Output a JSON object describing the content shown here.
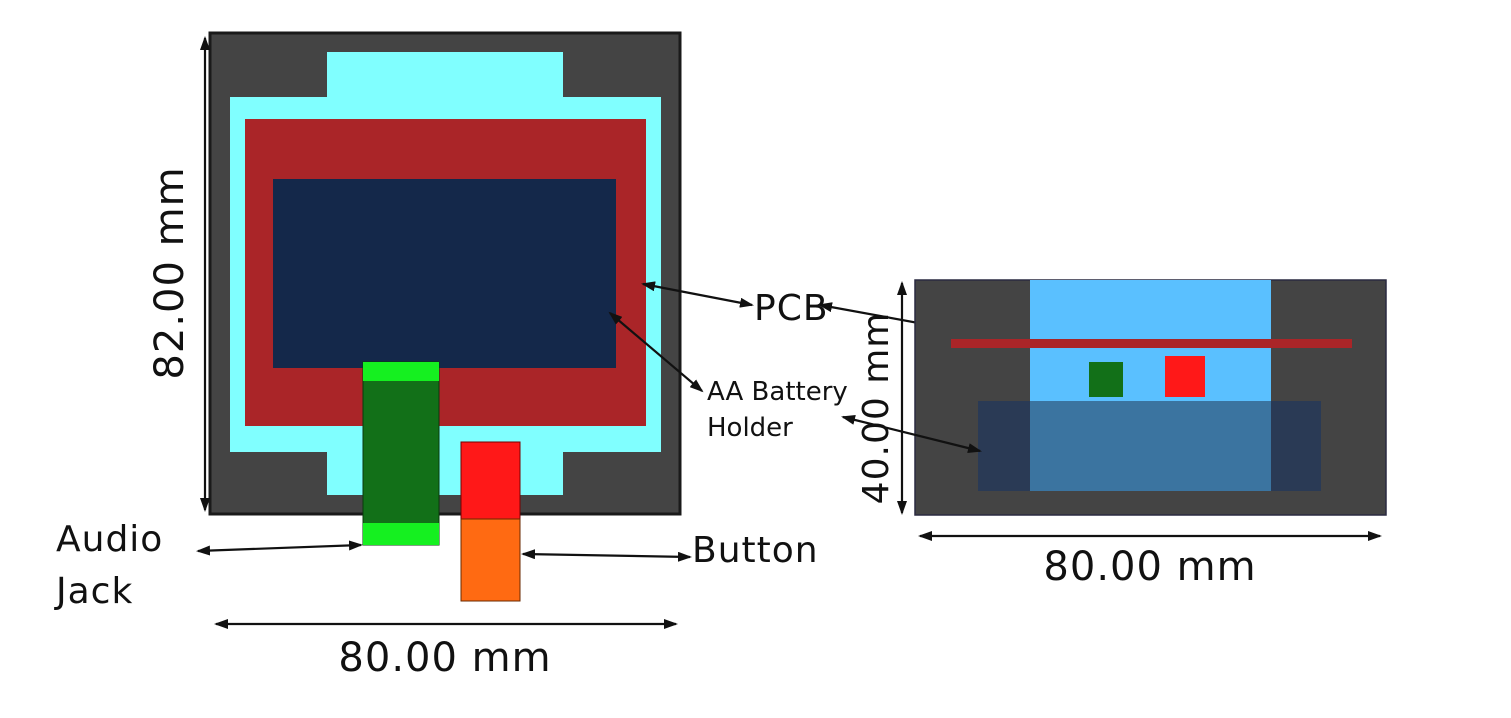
{
  "front_view": {
    "width_dimension": "80.00 mm",
    "height_dimension": "82.00 mm"
  },
  "side_view": {
    "width_dimension": "80.00 mm",
    "height_dimension": "40.00 mm"
  },
  "labels": {
    "pcb": "PCB",
    "battery_line1": "AA Battery",
    "battery_line2": "Holder",
    "audio_line1": "Audio",
    "audio_line2": "Jack",
    "button": "Button"
  },
  "colors": {
    "enclosure": "#444444",
    "enclosure_border": "#1a1a1a",
    "pcb_cyan": "#80ffff",
    "battery_holder_red": "#aa2528",
    "battery_navy": "#14284a",
    "audio_jack_dark": "#127018",
    "audio_jack_light": "#15f020",
    "button_red": "#ff1818",
    "button_orange": "#ff6a12",
    "side_light_blue": "#5ac0ff",
    "side_pcb_line": "#aa2528",
    "side_battery": "#2a3a55",
    "side_overlap": "#3b74a0"
  }
}
